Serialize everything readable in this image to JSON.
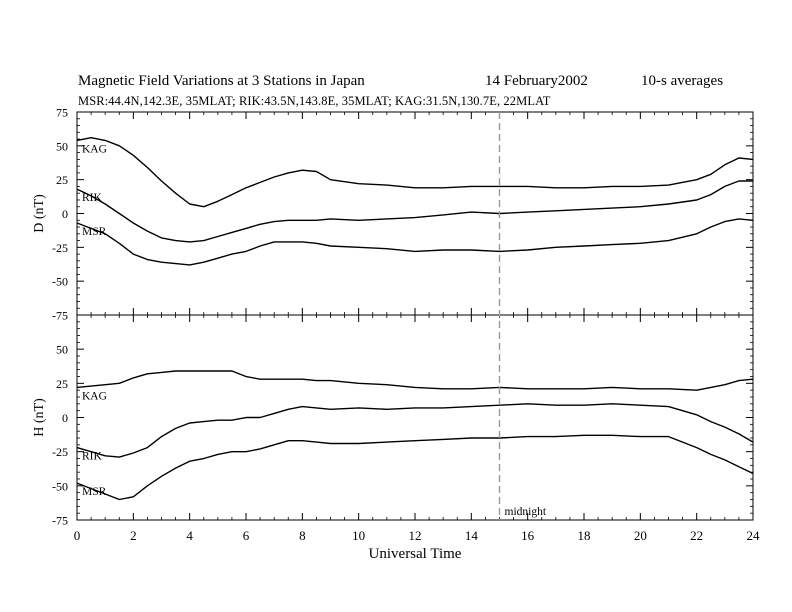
{
  "header": {
    "title": "Magnetic Field Variations at 3 Stations in Japan",
    "date": "14 February2002",
    "averaging": "10-s averages",
    "stations": "MSR:44.4N,142.3E, 35MLAT;  RIK:43.5N,143.8E, 35MLAT;  KAG:31.5N,130.7E, 22MLAT"
  },
  "chart_data": [
    {
      "type": "line",
      "panel": "D",
      "ylabel": "D (nT)",
      "xlim": [
        0,
        24
      ],
      "ylim": [
        -75,
        75
      ],
      "yticks": [
        -75,
        -50,
        -25,
        0,
        25,
        50,
        75
      ],
      "series": [
        {
          "name": "KAG",
          "x": [
            0,
            0.5,
            1,
            1.5,
            2,
            2.5,
            3,
            3.5,
            4,
            4.5,
            5,
            5.5,
            6,
            6.5,
            7,
            7.5,
            8,
            8.5,
            9,
            10,
            11,
            12,
            13,
            14,
            15,
            16,
            17,
            18,
            19,
            20,
            21,
            22,
            22.5,
            23,
            23.5,
            24
          ],
          "y": [
            54,
            56,
            54,
            50,
            43,
            34,
            24,
            15,
            7,
            5,
            9,
            14,
            19,
            23,
            27,
            30,
            32,
            31,
            25,
            22,
            21,
            19,
            19,
            20,
            20,
            20,
            19,
            19,
            20,
            20,
            21,
            25,
            29,
            36,
            41,
            40
          ]
        },
        {
          "name": "RIK",
          "x": [
            0,
            0.5,
            1,
            1.5,
            2,
            2.5,
            3,
            3.5,
            4,
            4.5,
            5,
            5.5,
            6,
            6.5,
            7,
            7.5,
            8,
            8.5,
            9,
            10,
            11,
            12,
            13,
            14,
            15,
            16,
            17,
            18,
            19,
            20,
            21,
            22,
            22.5,
            23,
            23.5,
            24
          ],
          "y": [
            18,
            13,
            7,
            0,
            -7,
            -13,
            -18,
            -20,
            -21,
            -20,
            -17,
            -14,
            -11,
            -8,
            -6,
            -5,
            -5,
            -5,
            -4,
            -5,
            -4,
            -3,
            -1,
            1,
            0,
            1,
            2,
            3,
            4,
            5,
            7,
            10,
            14,
            20,
            24,
            24
          ]
        },
        {
          "name": "MSR",
          "x": [
            0,
            0.5,
            1,
            1.5,
            2,
            2.5,
            3,
            3.5,
            4,
            4.5,
            5,
            5.5,
            6,
            6.5,
            7,
            7.5,
            8,
            8.5,
            9,
            10,
            11,
            12,
            13,
            14,
            15,
            16,
            17,
            18,
            19,
            20,
            21,
            22,
            22.5,
            23,
            23.5,
            24
          ],
          "y": [
            -7,
            -11,
            -15,
            -22,
            -30,
            -34,
            -36,
            -37,
            -38,
            -36,
            -33,
            -30,
            -28,
            -24,
            -21,
            -21,
            -21,
            -22,
            -24,
            -25,
            -26,
            -28,
            -27,
            -27,
            -28,
            -27,
            -25,
            -24,
            -23,
            -22,
            -20,
            -15,
            -10,
            -6,
            -4,
            -5
          ]
        }
      ]
    },
    {
      "type": "line",
      "panel": "H",
      "ylabel": "H (nT)",
      "xlabel": "Universal Time",
      "xlim": [
        0,
        24
      ],
      "ylim": [
        -75,
        75
      ],
      "xticks": [
        0,
        2,
        4,
        6,
        8,
        10,
        12,
        14,
        16,
        18,
        20,
        22,
        24
      ],
      "yticks": [
        -75,
        -50,
        -25,
        0,
        25,
        50,
        75
      ],
      "series": [
        {
          "name": "KAG",
          "x": [
            0,
            0.5,
            1,
            1.5,
            2,
            2.5,
            3,
            3.5,
            4,
            4.5,
            5,
            5.5,
            6,
            6.5,
            7,
            7.5,
            8,
            8.5,
            9,
            10,
            11,
            12,
            13,
            14,
            15,
            16,
            17,
            18,
            19,
            20,
            21,
            22,
            22.5,
            23,
            23.5,
            24
          ],
          "y": [
            22,
            23,
            24,
            25,
            29,
            32,
            33,
            34,
            34,
            34,
            34,
            34,
            30,
            28,
            28,
            28,
            28,
            27,
            27,
            25,
            24,
            22,
            21,
            21,
            22,
            21,
            21,
            21,
            22,
            21,
            21,
            20,
            22,
            24,
            27,
            28
          ]
        },
        {
          "name": "RIK",
          "x": [
            0,
            0.5,
            1,
            1.5,
            2,
            2.5,
            3,
            3.5,
            4,
            4.5,
            5,
            5.5,
            6,
            6.5,
            7,
            7.5,
            8,
            8.5,
            9,
            10,
            11,
            12,
            13,
            14,
            15,
            16,
            17,
            18,
            19,
            20,
            21,
            22,
            22.5,
            23,
            23.5,
            24
          ],
          "y": [
            -22,
            -25,
            -28,
            -29,
            -26,
            -22,
            -14,
            -8,
            -4,
            -3,
            -2,
            -2,
            0,
            0,
            3,
            6,
            8,
            7,
            6,
            7,
            6,
            7,
            7,
            8,
            9,
            10,
            9,
            9,
            10,
            9,
            8,
            2,
            -3,
            -7,
            -12,
            -18
          ]
        },
        {
          "name": "MSR",
          "x": [
            0,
            0.5,
            1,
            1.5,
            2,
            2.5,
            3,
            3.5,
            4,
            4.5,
            5,
            5.5,
            6,
            6.5,
            7,
            7.5,
            8,
            8.5,
            9,
            10,
            11,
            12,
            13,
            14,
            15,
            16,
            17,
            18,
            19,
            20,
            21,
            22,
            22.5,
            23,
            23.5,
            24
          ],
          "y": [
            -48,
            -52,
            -56,
            -60,
            -58,
            -50,
            -43,
            -37,
            -32,
            -30,
            -27,
            -25,
            -25,
            -23,
            -20,
            -17,
            -17,
            -18,
            -19,
            -19,
            -18,
            -17,
            -16,
            -15,
            -15,
            -14,
            -14,
            -13,
            -13,
            -14,
            -14,
            -22,
            -27,
            -31,
            -36,
            -41
          ]
        }
      ]
    }
  ],
  "annotation": {
    "label": "midnight",
    "x": 15
  }
}
